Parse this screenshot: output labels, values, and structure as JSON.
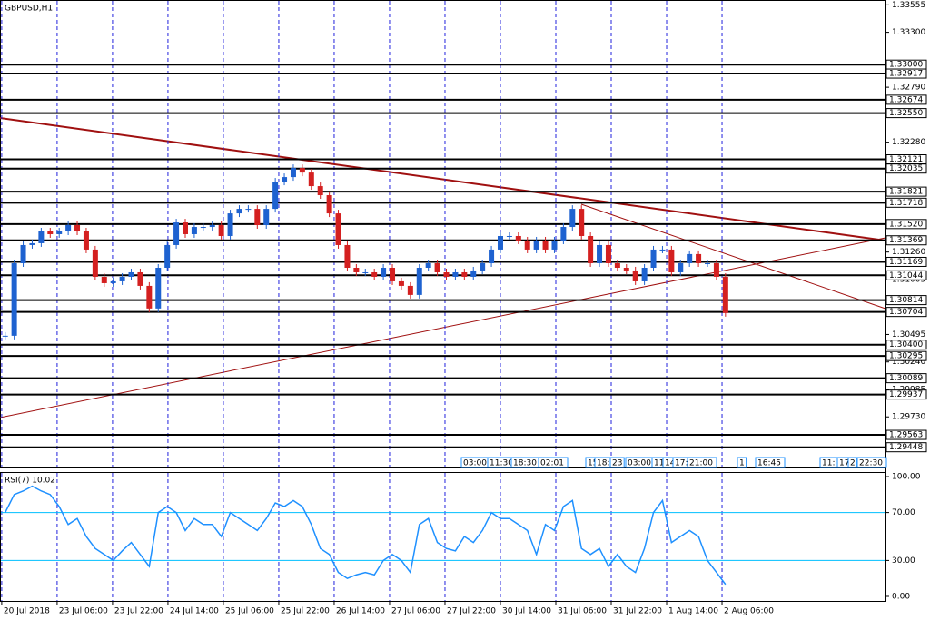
{
  "chart_data": [
    {
      "type": "candlestick",
      "title": "GBPUSD,H1",
      "x": [
        1,
        3.6,
        6.2,
        8.8,
        11.4,
        14,
        16.6,
        19.2,
        21.8,
        24.4,
        27,
        29.6,
        32.2,
        34.8,
        37.4,
        40,
        42.6,
        45.2,
        47.8,
        50.4,
        53,
        55.6,
        58.2,
        60.8,
        63.4,
        66,
        68.6,
        71.2,
        73.8,
        76.4,
        79,
        81.6,
        84.2,
        86.8,
        89.4,
        92,
        94.6,
        97.2,
        99.8,
        102.4,
        105,
        107.6,
        110.2,
        112.8,
        115.4,
        118,
        120.6,
        123.2,
        125.8,
        128.4,
        131,
        133.6,
        136.2,
        138.8,
        141.4,
        144,
        146.6,
        149.2,
        151.8,
        154.4,
        157,
        159.6,
        162.2,
        164.8,
        167.4,
        170,
        172.6,
        175.2,
        177.8,
        180.4,
        183,
        185.6,
        188.2,
        190.8,
        193.4,
        196,
        198.6,
        201.2,
        203.8,
        206.4,
        209
      ],
      "values": [
        1.30483,
        1.31156,
        1.31325,
        1.31342,
        1.31451,
        1.31426,
        1.31451,
        1.3151,
        1.31451,
        1.31283,
        1.3103,
        1.30971,
        1.30988,
        1.3103,
        1.31072,
        1.30946,
        1.30736,
        1.31114,
        1.31325,
        1.31535,
        1.31426,
        1.31493,
        1.31493,
        1.3151,
        1.31409,
        1.31619,
        1.31661,
        1.31661,
        1.3151,
        1.31661,
        1.31914,
        1.31956,
        1.3204,
        1.31998,
        1.31872,
        1.31788,
        1.31619,
        1.31325,
        1.31114,
        1.31072,
        1.31072,
        1.3103,
        1.31114,
        1.30988,
        1.30946,
        1.30862,
        1.31114,
        1.31156,
        1.31072,
        1.3103,
        1.31072,
        1.3103,
        1.31089,
        1.31156,
        1.31283,
        1.31409,
        1.31409,
        1.31367,
        1.31283,
        1.31367,
        1.31283,
        1.31367,
        1.31493,
        1.31661,
        1.31409,
        1.31156,
        1.31325,
        1.31156,
        1.31114,
        1.31089,
        1.30988,
        1.31114,
        1.31283,
        1.31283,
        1.31072,
        1.31156,
        1.31241,
        1.31156,
        1.31156,
        1.3103,
        1.30694
      ],
      "up_color": "#1e62d0",
      "down_color": "#d42020",
      "xlim": [
        -0.5,
        255.2
      ],
      "xticks": [
        {
          "value": 0,
          "label": "20 Jul 2018"
        },
        {
          "value": 16,
          "label": "23 Jul 06:00"
        },
        {
          "value": 32,
          "label": "23 Jul 22:00"
        },
        {
          "value": 48,
          "label": "24 Jul 14:00"
        },
        {
          "value": 64,
          "label": "25 Jul 06:00"
        },
        {
          "value": 80,
          "label": "25 Jul 22:00"
        },
        {
          "value": 96,
          "label": "26 Jul 14:00"
        },
        {
          "value": 112,
          "label": "27 Jul 06:00"
        },
        {
          "value": 128,
          "label": "27 Jul 22:00"
        },
        {
          "value": 144,
          "label": "30 Jul 14:00"
        },
        {
          "value": 160,
          "label": "31 Jul 06:00"
        },
        {
          "value": 176,
          "label": "31 Jul 22:00"
        },
        {
          "value": 192,
          "label": "1 Aug 14:00"
        },
        {
          "value": 208,
          "label": "2 Aug 06:00"
        }
      ],
      "ylim": [
        1.2926,
        1.336
      ],
      "yticks": [
        {
          "value": 1.33555,
          "label": "1.33555"
        },
        {
          "value": 1.333,
          "label": "1.33300"
        },
        {
          "value": 1.3279,
          "label": "1.32790"
        },
        {
          "value": 1.3228,
          "label": "1.32280"
        },
        {
          "value": 1.3126,
          "label": "1.31260"
        },
        {
          "value": 1.31005,
          "label": "1.31005"
        },
        {
          "value": 1.30495,
          "label": "1.30495"
        },
        {
          "value": 1.3024,
          "label": "1.30240"
        },
        {
          "value": 1.29985,
          "label": "1.29985"
        },
        {
          "value": 1.2973,
          "label": "1.29730"
        }
      ],
      "levels": [
        {
          "value": 1.33,
          "label": "1.33000"
        },
        {
          "value": 1.32917,
          "label": "1.32917"
        },
        {
          "value": 1.32674,
          "label": "1.32674"
        },
        {
          "value": 1.3255,
          "label": "1.32550"
        },
        {
          "value": 1.32121,
          "label": "1.32121"
        },
        {
          "value": 1.32035,
          "label": "1.32035"
        },
        {
          "value": 1.31821,
          "label": "1.31821"
        },
        {
          "value": 1.31718,
          "label": "1.31718"
        },
        {
          "value": 1.3152,
          "label": "1.31520"
        },
        {
          "value": 1.31369,
          "label": "1.31369"
        },
        {
          "value": 1.31169,
          "label": "1.31169"
        },
        {
          "value": 1.31044,
          "label": "1.31044"
        },
        {
          "value": 1.30814,
          "label": "1.30814"
        },
        {
          "value": 1.30704,
          "label": "1.30704"
        },
        {
          "value": 1.304,
          "label": "1.30400"
        },
        {
          "value": 1.30295,
          "label": "1.30295"
        },
        {
          "value": 1.30089,
          "label": "1.30089"
        },
        {
          "value": 1.29937,
          "label": "1.29937"
        },
        {
          "value": 1.29563,
          "label": "1.29563"
        },
        {
          "value": 1.29448,
          "label": "1.29448"
        }
      ],
      "time_markers": [
        "03:00",
        "11:30",
        "18:30",
        "02:01",
        "15",
        "18:3",
        "23",
        "03:00",
        "11",
        "14",
        "17:",
        "21:00",
        "1",
        "16:45",
        "11:",
        "17",
        "2",
        "22:30"
      ],
      "grid": true
    },
    {
      "type": "line",
      "title": "RSI(7) 10.02",
      "color": "#1e90ff",
      "values": [
        70,
        85,
        88,
        92,
        88,
        85,
        75,
        60,
        65,
        50,
        40,
        35,
        30,
        38,
        45,
        35,
        25,
        70,
        75,
        70,
        55,
        65,
        60,
        60,
        50,
        70,
        65,
        60,
        55,
        65,
        78,
        75,
        80,
        75,
        60,
        40,
        35,
        20,
        15,
        18,
        20,
        18,
        30,
        35,
        30,
        20,
        60,
        65,
        45,
        40,
        38,
        50,
        45,
        55,
        70,
        65,
        65,
        60,
        55,
        35,
        60,
        55,
        75,
        80,
        40,
        35,
        40,
        25,
        35,
        25,
        20,
        40,
        70,
        80,
        45,
        50,
        55,
        50,
        30,
        20,
        10.02
      ],
      "ylim": [
        -3.8,
        103.8
      ],
      "yticks": [
        {
          "value": 100,
          "label": "100.00"
        },
        {
          "value": 70,
          "label": "70.00"
        },
        {
          "value": 30,
          "label": "30.00"
        },
        {
          "value": 0,
          "label": "0.00"
        }
      ],
      "levels": [
        70,
        30
      ],
      "level_color": "#00bfff"
    }
  ]
}
